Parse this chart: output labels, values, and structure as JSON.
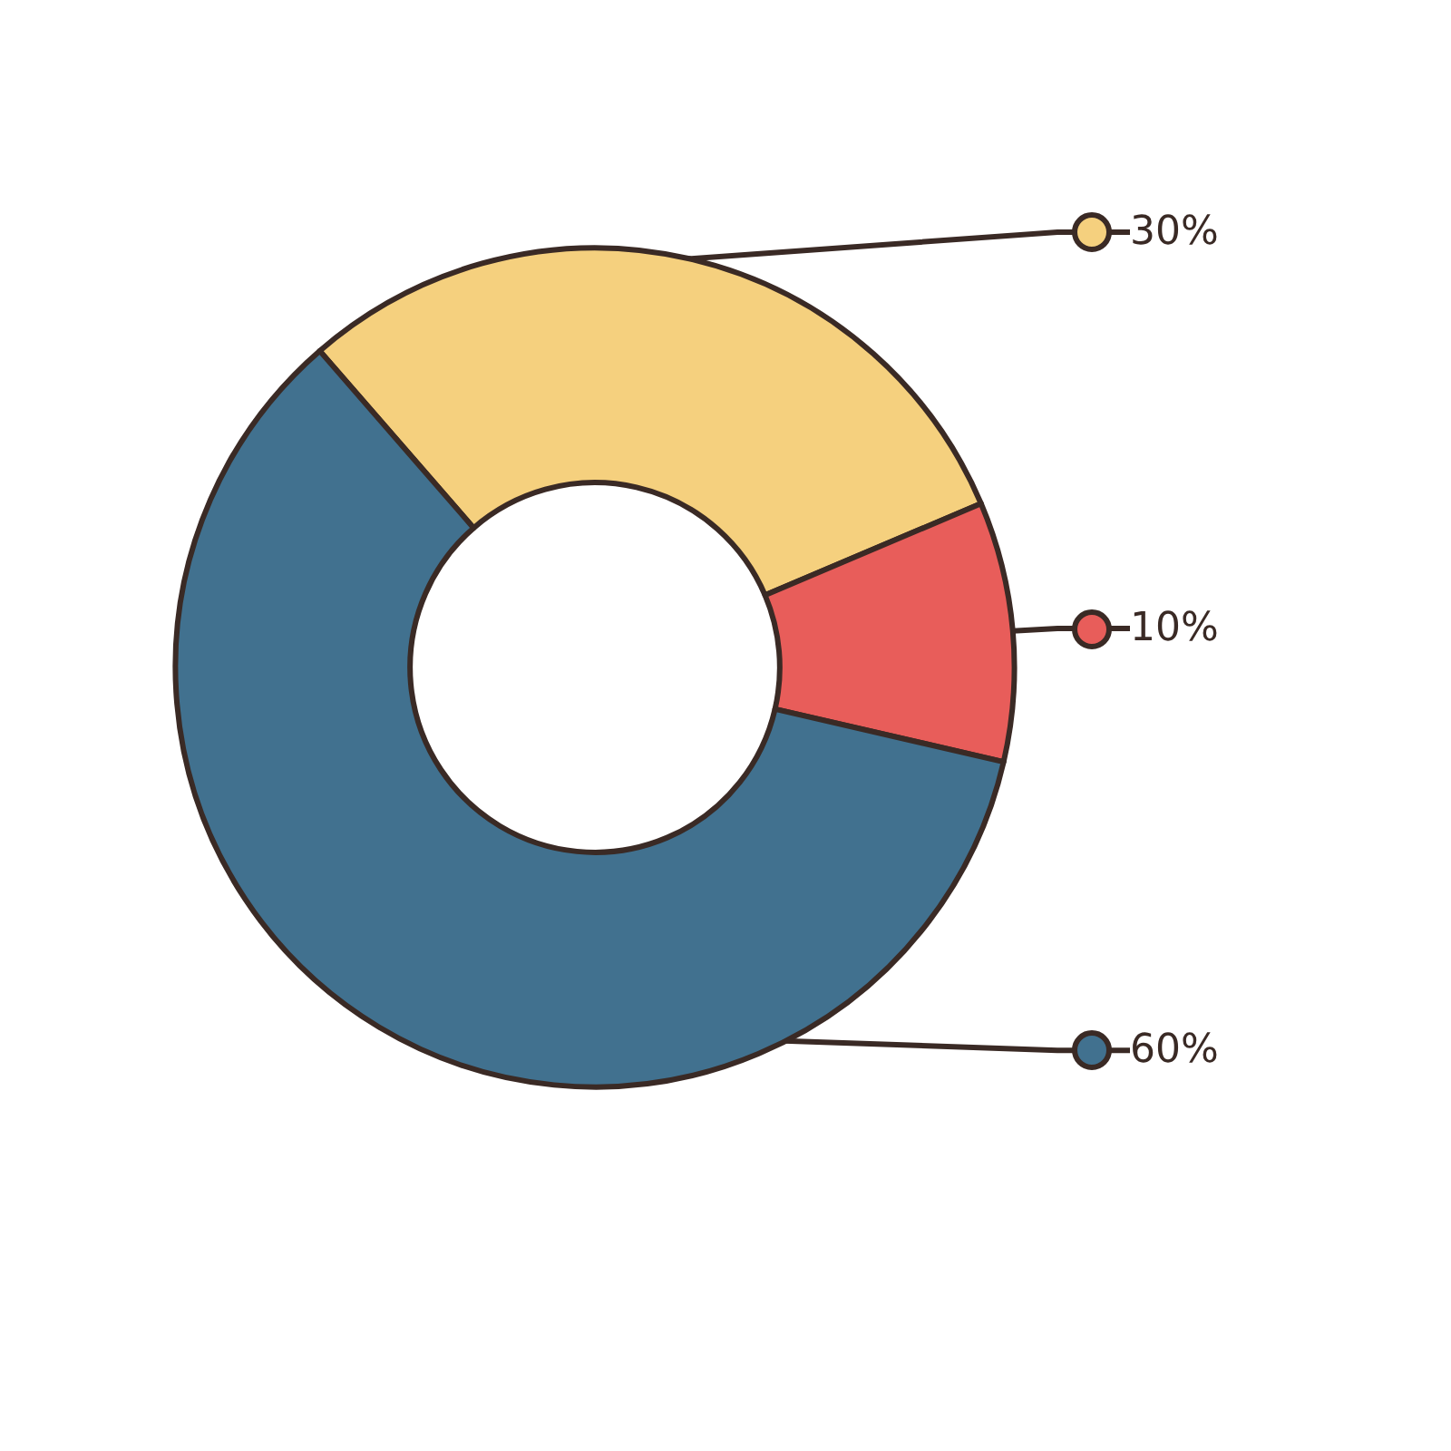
{
  "chart_data": {
    "type": "donut",
    "categories": [
      null,
      null,
      null
    ],
    "values": [
      30,
      10,
      60
    ],
    "value_labels": [
      "30%",
      "10%",
      "60%"
    ],
    "colors": [
      "#f5d07e",
      "#e85d5a",
      "#41718f"
    ]
  }
}
